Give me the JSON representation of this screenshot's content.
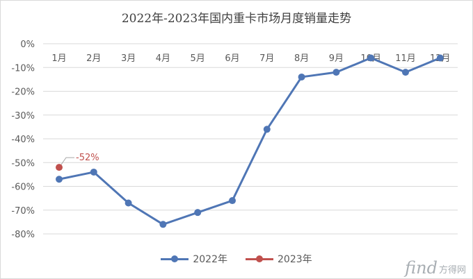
{
  "chart_data": {
    "type": "line",
    "title": "2022年-2023年国内重卡市场月度销量走势",
    "categories": [
      "1月",
      "2月",
      "3月",
      "4月",
      "5月",
      "6月",
      "7月",
      "8月",
      "9月",
      "10月",
      "11月",
      "12月"
    ],
    "yticks": [
      "0%",
      "-10%",
      "-20%",
      "-30%",
      "-40%",
      "-50%",
      "-60%",
      "-70%",
      "-80%"
    ],
    "ylim": [
      -80,
      0
    ],
    "grid": true,
    "legend_position": "bottom",
    "series": [
      {
        "name": "2022年",
        "color": "#4f76b5",
        "values": [
          -57,
          -54,
          -67,
          -76,
          -71,
          -66,
          -36,
          -14,
          -12,
          -6,
          -12,
          -6
        ]
      },
      {
        "name": "2023年",
        "color": "#c0504d",
        "values": [
          -52,
          null,
          null,
          null,
          null,
          null,
          null,
          null,
          null,
          null,
          null,
          null
        ]
      }
    ],
    "annotations": [
      {
        "series": 1,
        "index": 0,
        "text": "-52%"
      }
    ]
  },
  "watermark": {
    "logo": "find",
    "text": "方得网"
  }
}
